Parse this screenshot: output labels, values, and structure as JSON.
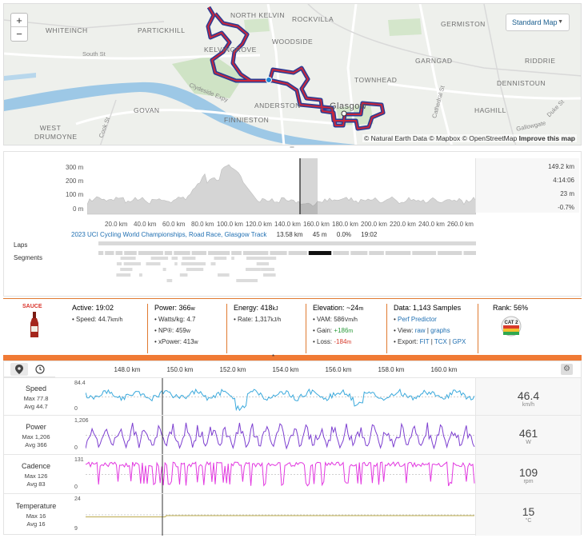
{
  "map": {
    "labels": [
      "WHITEINCH",
      "PARTICKHILL",
      "NORTH KELVIN",
      "ROCKVILLA",
      "GERMISTON",
      "KELVINGROVE",
      "WOODSIDE",
      "GARNGAD",
      "DENNISTOUN",
      "GOVAN",
      "ANDERSTON",
      "TOWNHEAD",
      "RIDDRIE",
      "HAGHILL",
      "FINNIESTON",
      "Glasgow",
      "WEST DRUMOYNE"
    ],
    "street_labels": [
      "South St",
      "Clydeside Expy",
      "Cook St",
      "Cathedral St",
      "Duke St",
      "Gallowgate"
    ],
    "zoom_in": "+",
    "zoom_out": "−",
    "style_select": "Standard Map",
    "attribution": "© Natural Earth Data © Mapbox © OpenStreetMap",
    "improve": "Improve this map",
    "route_color": "#c8283c",
    "route_outline": "#2b3b93"
  },
  "overview": {
    "y_ticks": [
      "300 m",
      "200 m",
      "100 m",
      "0 m"
    ],
    "x_ticks": [
      "20.0 km",
      "40.0 km",
      "60.0 km",
      "80.0 km",
      "100.0 km",
      "120.0 km",
      "140.0 km",
      "160.0 km",
      "180.0 km",
      "200.0 km",
      "220.0 km",
      "240.0 km",
      "260.0 km"
    ],
    "stats": [
      "149.2 km",
      "4:14:06",
      "23 m",
      "-0.7%"
    ],
    "event_name": "2023 UCI Cycling World Championships, Road Race, Glasgow Track",
    "event_distance": "13.58 km",
    "event_gain": "45 m",
    "event_grade": "0.0%",
    "event_time": "19:02",
    "laps_label": "Laps",
    "segments_label": "Segments"
  },
  "info": {
    "sauce": "SAUCE",
    "active_label": "Active:",
    "active": "19:02",
    "speed_label": "Speed:",
    "speed": "44.7",
    "speed_unit": "km/h",
    "power_label": "Power:",
    "power": "366",
    "power_unit": "w",
    "wkg_label": "Watts/kg:",
    "wkg": "4.7",
    "np_label": "NP®:",
    "np": "459",
    "xp_label": "xPower:",
    "xp": "413",
    "energy_label": "Energy:",
    "energy": "418",
    "energy_unit": "kJ",
    "rate_label": "Rate:",
    "rate": "1,317",
    "rate_unit": "kJ/h",
    "elev_label": "Elevation:",
    "elev": "~24",
    "elev_unit": "m",
    "vam_label": "VAM:",
    "vam": "586",
    "vam_unit": "Vm/h",
    "gain_label": "Gain:",
    "gain": "+186",
    "loss_label": "Loss:",
    "loss": "-184",
    "m": "m",
    "data_label": "Data:",
    "samples": "1,143 Samples",
    "perf": "Perf Predictor",
    "view_label": "View:",
    "raw": "raw",
    "graphs": "graphs",
    "export_label": "Export:",
    "fit": "FIT",
    "tcx": "TCX",
    "gpx": "GPX",
    "pipe": "|",
    "rank_label": "Rank:",
    "rank": "56%",
    "badge": "CAT 2",
    "orange_marker": "*"
  },
  "streams": {
    "km_ticks": [
      "148.0 km",
      "150.0 km",
      "152.0 km",
      "154.0 km",
      "156.0 km",
      "158.0 km",
      "160.0 km"
    ],
    "rows": [
      {
        "name": "Speed",
        "max": "Max 77.8",
        "avg": "Avg 44.7",
        "value": "46.4",
        "unit": "km/h",
        "axis_max": "84.4",
        "axis_min": "0",
        "color": "#3aa9dc"
      },
      {
        "name": "Power",
        "max": "Max 1,206",
        "avg": "Avg 366",
        "value": "461",
        "unit": "W",
        "axis_max": "1,206",
        "axis_min": "0",
        "color": "#7d3fd0"
      },
      {
        "name": "Cadence",
        "max": "Max 126",
        "avg": "Avg 83",
        "value": "109",
        "unit": "rpm",
        "axis_max": "131",
        "axis_min": "0",
        "color": "#e238e0"
      },
      {
        "name": "Temperature",
        "max": "Max 16",
        "avg": "Avg 16",
        "value": "15",
        "unit": "°C",
        "axis_max": "24",
        "axis_min": "9",
        "color": "#b9a84a"
      }
    ]
  }
}
